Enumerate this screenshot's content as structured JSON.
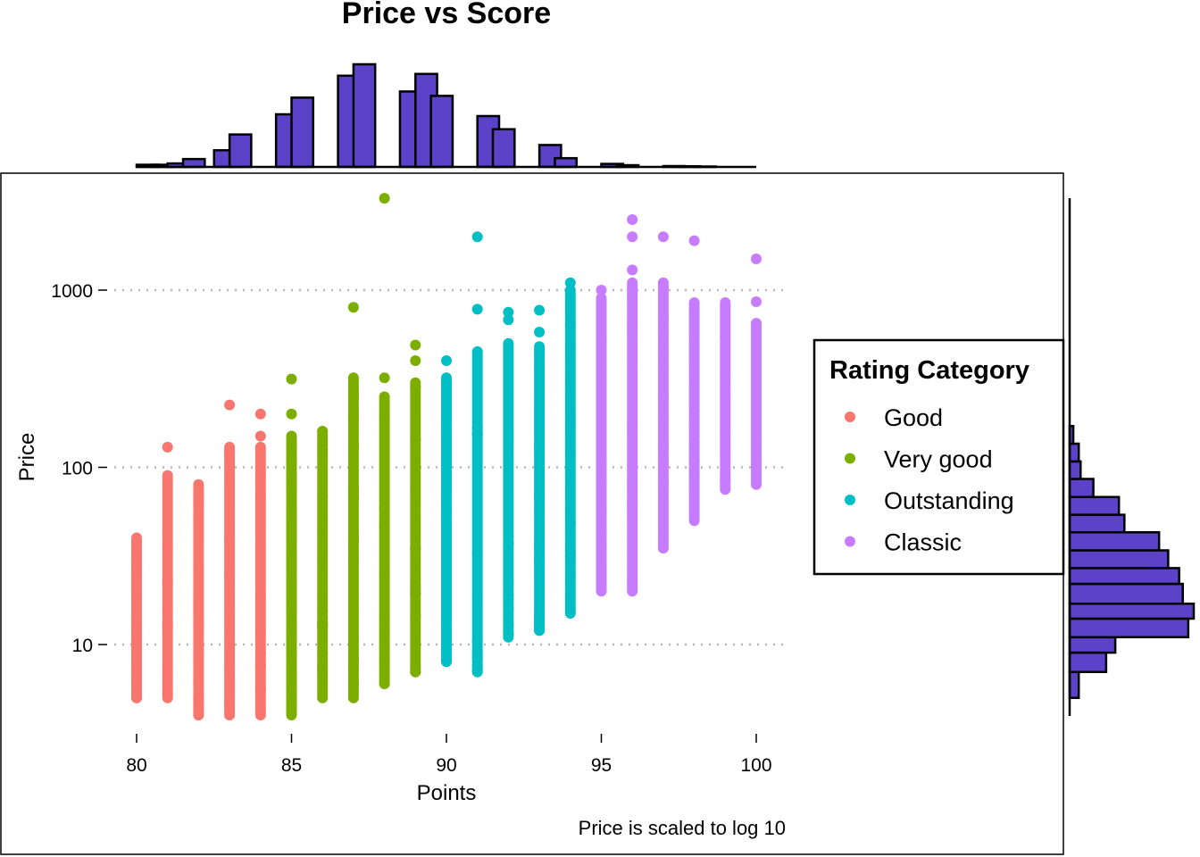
{
  "chart_data": {
    "type": "scatter",
    "title": "Price vs Score",
    "xlabel": "Points",
    "ylabel": "Price",
    "caption": "Price is scaled to log 10",
    "x_ticks": [
      "80",
      "85",
      "90",
      "95",
      "100"
    ],
    "y_ticks": [
      "10",
      "100",
      "1000"
    ],
    "xlim": [
      80,
      100
    ],
    "ylim": [
      4,
      3300
    ],
    "y_scale": "log10",
    "grid": "horizontal dotted at major y ticks",
    "legend": {
      "title": "Rating Category",
      "placement": "right",
      "items": [
        {
          "label": "Good",
          "color": "#F8766D"
        },
        {
          "label": "Very good",
          "color": "#7CAE00"
        },
        {
          "label": "Outstanding",
          "color": "#00BFC4"
        },
        {
          "label": "Classic",
          "color": "#C77CFF"
        }
      ]
    },
    "series": [
      {
        "name": "Good",
        "color": "#F8766D",
        "columns": [
          {
            "x": 80,
            "min": 5,
            "max": 40,
            "extras": [
              5,
              6
            ]
          },
          {
            "x": 81,
            "min": 5,
            "max": 90,
            "extras": [
              130
            ]
          },
          {
            "x": 82,
            "min": 4,
            "max": 80,
            "extras": [
              4,
              5
            ]
          },
          {
            "x": 83,
            "min": 4,
            "max": 130,
            "extras": [
              225
            ]
          },
          {
            "x": 84,
            "min": 4,
            "max": 130,
            "extras": [
              150,
              200
            ]
          }
        ]
      },
      {
        "name": "Very good",
        "color": "#7CAE00",
        "columns": [
          {
            "x": 85,
            "min": 4,
            "max": 150,
            "extras": [
              200,
              315
            ]
          },
          {
            "x": 86,
            "min": 5,
            "max": 160,
            "extras": []
          },
          {
            "x": 87,
            "min": 5,
            "max": 320,
            "extras": [
              800
            ]
          },
          {
            "x": 88,
            "min": 6,
            "max": 250,
            "extras": [
              320,
              3300
            ]
          },
          {
            "x": 89,
            "min": 7,
            "max": 300,
            "extras": [
              400,
              490
            ]
          }
        ]
      },
      {
        "name": "Outstanding",
        "color": "#00BFC4",
        "columns": [
          {
            "x": 90,
            "min": 8,
            "max": 320,
            "extras": [
              400
            ]
          },
          {
            "x": 91,
            "min": 7,
            "max": 450,
            "extras": [
              780,
              2000
            ]
          },
          {
            "x": 92,
            "min": 11,
            "max": 500,
            "extras": [
              680,
              750
            ]
          },
          {
            "x": 93,
            "min": 12,
            "max": 480,
            "extras": [
              580,
              770
            ]
          },
          {
            "x": 94,
            "min": 15,
            "max": 1000,
            "extras": [
              1100
            ]
          }
        ]
      },
      {
        "name": "Classic",
        "color": "#C77CFF",
        "columns": [
          {
            "x": 95,
            "min": 20,
            "max": 900,
            "extras": [
              1000
            ]
          },
          {
            "x": 96,
            "min": 20,
            "max": 1100,
            "extras": [
              1300,
              2000,
              2500
            ]
          },
          {
            "x": 97,
            "min": 35,
            "max": 1100,
            "extras": [
              2000
            ]
          },
          {
            "x": 98,
            "min": 50,
            "max": 850,
            "extras": [
              1900
            ]
          },
          {
            "x": 99,
            "min": 75,
            "max": 850,
            "extras": []
          },
          {
            "x": 100,
            "min": 80,
            "max": 650,
            "extras": [
              150,
              860,
              1500
            ]
          }
        ]
      }
    ],
    "marginal_x_histogram": {
      "color": "#5B42C8",
      "bins": [
        {
          "x": 80,
          "count": 25
        },
        {
          "x": 80.5,
          "count": 25
        },
        {
          "x": 81,
          "count": 40
        },
        {
          "x": 81.5,
          "count": 90
        },
        {
          "x": 82,
          "count": 0
        },
        {
          "x": 82.5,
          "count": 190
        },
        {
          "x": 83,
          "count": 370
        },
        {
          "x": 84,
          "count": 0
        },
        {
          "x": 84.5,
          "count": 600
        },
        {
          "x": 85,
          "count": 790
        },
        {
          "x": 86,
          "count": 0
        },
        {
          "x": 86.5,
          "count": 1040
        },
        {
          "x": 87,
          "count": 1170
        },
        {
          "x": 88,
          "count": 0
        },
        {
          "x": 88.5,
          "count": 860
        },
        {
          "x": 89,
          "count": 1060
        },
        {
          "x": 89.5,
          "count": 810
        },
        {
          "x": 90.5,
          "count": 0
        },
        {
          "x": 91,
          "count": 580
        },
        {
          "x": 91.5,
          "count": 430
        },
        {
          "x": 92.5,
          "count": 0
        },
        {
          "x": 93,
          "count": 250
        },
        {
          "x": 93.5,
          "count": 100
        },
        {
          "x": 94.5,
          "count": 0
        },
        {
          "x": 95,
          "count": 35
        },
        {
          "x": 95.5,
          "count": 20
        },
        {
          "x": 96.5,
          "count": 0
        },
        {
          "x": 97,
          "count": 10
        },
        {
          "x": 97.5,
          "count": 8
        },
        {
          "x": 98,
          "count": 5
        }
      ]
    },
    "marginal_y_histogram": {
      "color": "#5B42C8",
      "bins": [
        {
          "price": 4,
          "count": 0
        },
        {
          "price": 5,
          "count": 50
        },
        {
          "price": 7,
          "count": 200
        },
        {
          "price": 9,
          "count": 250
        },
        {
          "price": 11,
          "count": 650
        },
        {
          "price": 14,
          "count": 680
        },
        {
          "price": 17,
          "count": 620
        },
        {
          "price": 22,
          "count": 600
        },
        {
          "price": 27,
          "count": 540
        },
        {
          "price": 34,
          "count": 490
        },
        {
          "price": 43,
          "count": 300
        },
        {
          "price": 54,
          "count": 270
        },
        {
          "price": 68,
          "count": 130
        },
        {
          "price": 86,
          "count": 60
        },
        {
          "price": 108,
          "count": 50
        },
        {
          "price": 136,
          "count": 20
        },
        {
          "price": 171,
          "count": 0
        }
      ]
    }
  }
}
